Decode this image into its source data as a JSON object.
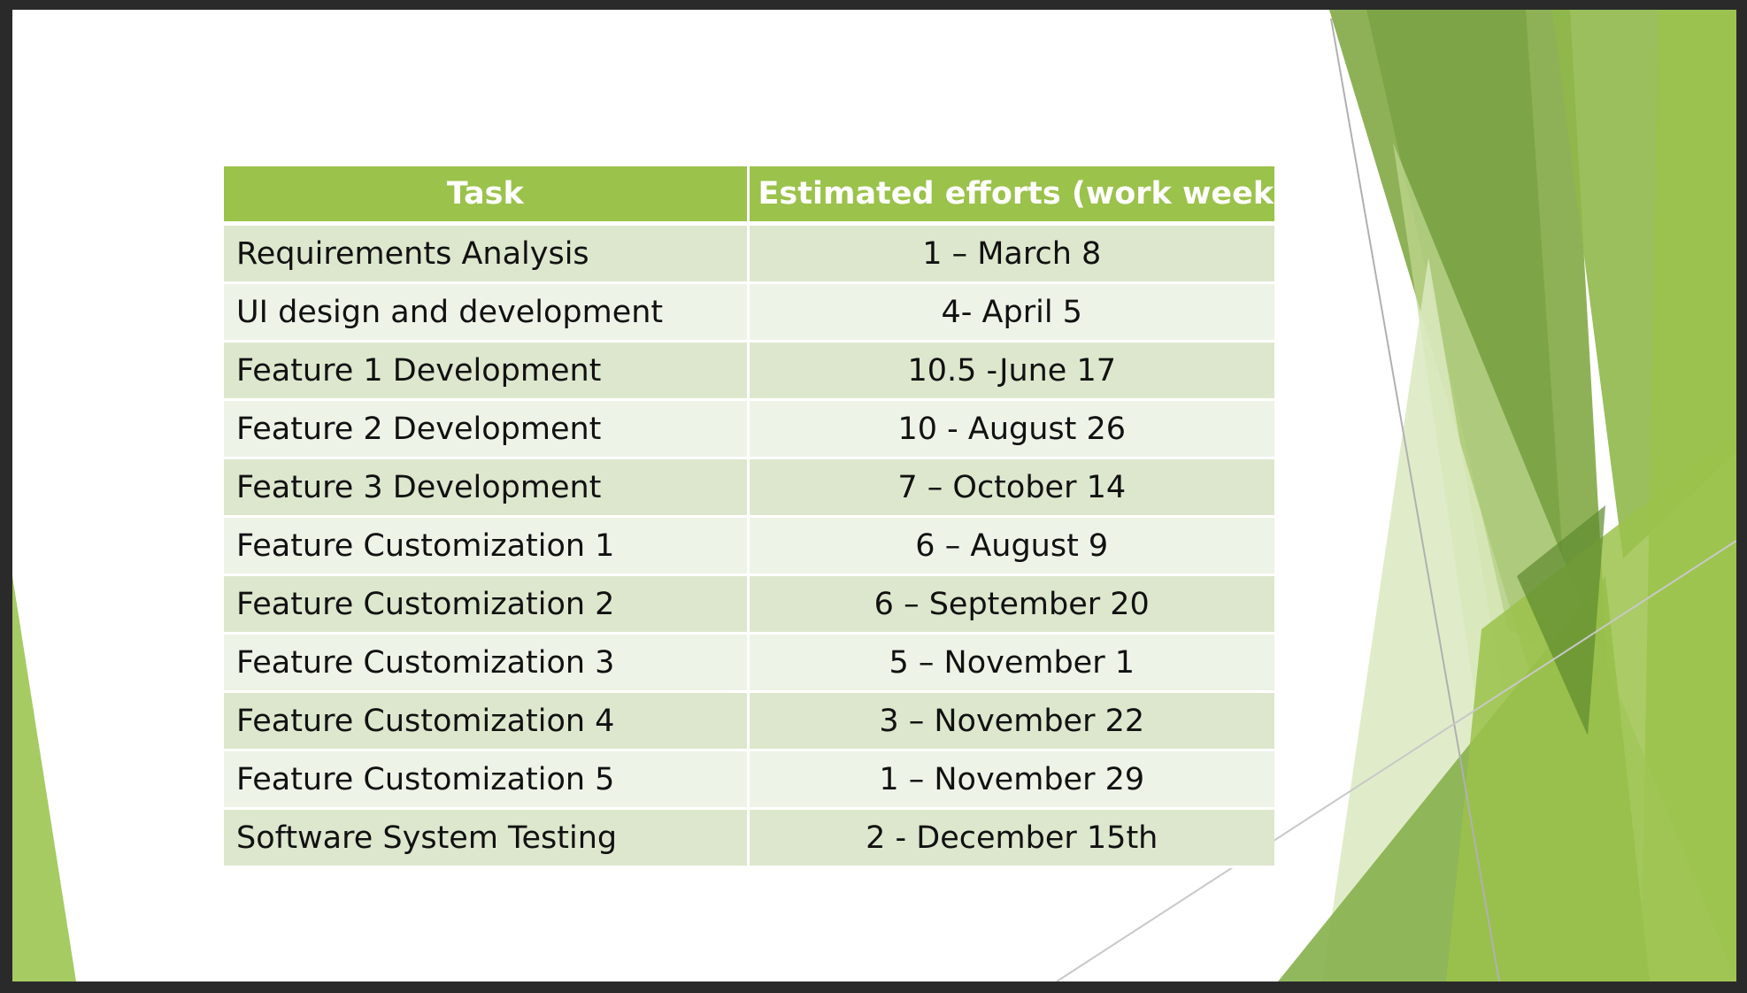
{
  "theme": {
    "header_color": "#9bc24b",
    "row_odd_color": "#dde7cd",
    "row_even_color": "#eef3e8",
    "accent_greens": [
      "#7aa33a",
      "#8fb84a",
      "#9bc24b",
      "#c3da93",
      "#5e8a2e"
    ]
  },
  "table": {
    "headers": [
      "Task",
      "Estimated efforts (work weeks)"
    ],
    "rows": [
      {
        "task": "Requirements Analysis",
        "effort": "1 – March 8"
      },
      {
        "task": "UI design and development",
        "effort": "4- April 5"
      },
      {
        "task": "Feature 1 Development",
        "effort": "10.5 -June 17"
      },
      {
        "task": "Feature 2 Development",
        "effort": "10 - August 26"
      },
      {
        "task": "Feature 3 Development",
        "effort": "7 – October 14"
      },
      {
        "task": "Feature Customization 1",
        "effort": "6 – August 9"
      },
      {
        "task": "Feature Customization 2",
        "effort": "6 – September 20"
      },
      {
        "task": "Feature Customization 3",
        "effort": "5 – November 1"
      },
      {
        "task": "Feature Customization 4",
        "effort": "3 – November 22"
      },
      {
        "task": "Feature Customization 5",
        "effort": "1 – November 29"
      },
      {
        "task": "Software System Testing",
        "effort": "2 - December 15th"
      }
    ]
  }
}
